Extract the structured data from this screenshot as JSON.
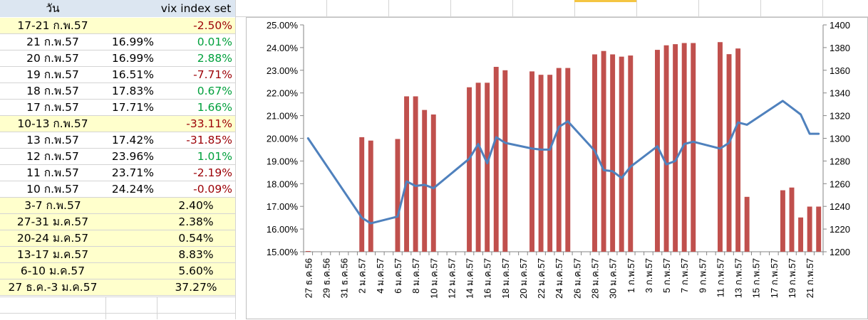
{
  "table": {
    "header": {
      "c1": "วัน",
      "c3": "vix index set"
    },
    "rows": [
      {
        "c1": "17-21 ก.พ.57",
        "c2": "",
        "c3": "-2.50%",
        "style": "yellow",
        "sign": "neg"
      },
      {
        "c1": "21 ก.พ.57",
        "c2": "16.99%",
        "c3": "0.01%",
        "style": "",
        "sign": "pos"
      },
      {
        "c1": "20 ก.พ.57",
        "c2": "16.99%",
        "c3": "2.88%",
        "style": "",
        "sign": "pos"
      },
      {
        "c1": "19 ก.พ.57",
        "c2": "16.51%",
        "c3": "-7.71%",
        "style": "",
        "sign": "neg"
      },
      {
        "c1": "18 ก.พ.57",
        "c2": "17.83%",
        "c3": "0.67%",
        "style": "",
        "sign": "pos"
      },
      {
        "c1": "17 ก.พ.57",
        "c2": "17.71%",
        "c3": "1.66%",
        "style": "",
        "sign": "pos"
      },
      {
        "c1": "10-13 ก.พ.57",
        "c2": "",
        "c3": "-33.11%",
        "style": "yellow",
        "sign": "neg"
      },
      {
        "c1": "13 ก.พ.57",
        "c2": "17.42%",
        "c3": "-31.85%",
        "style": "",
        "sign": "neg"
      },
      {
        "c1": "12 ก.พ.57",
        "c2": "23.96%",
        "c3": "1.01%",
        "style": "",
        "sign": "pos"
      },
      {
        "c1": "11 ก.พ.57",
        "c2": "23.71%",
        "c3": "-2.19%",
        "style": "",
        "sign": "neg"
      },
      {
        "c1": "10 ก.พ.57",
        "c2": "24.24%",
        "c3": "-0.09%",
        "style": "",
        "sign": "neg"
      },
      {
        "c1": "3-7 ก.พ.57",
        "c2": "",
        "c3": "2.40%",
        "style": "yellow",
        "sign": "plain"
      },
      {
        "c1": "27-31 ม.ค.57",
        "c2": "",
        "c3": "2.38%",
        "style": "yellow",
        "sign": "plain"
      },
      {
        "c1": "20-24 ม.ค.57",
        "c2": "",
        "c3": "0.54%",
        "style": "yellow",
        "sign": "plain"
      },
      {
        "c1": "13-17 ม.ค.57",
        "c2": "",
        "c3": "8.83%",
        "style": "yellow",
        "sign": "plain"
      },
      {
        "c1": "6-10 ม.ค.57",
        "c2": "",
        "c3": "5.60%",
        "style": "yellow",
        "sign": "plain"
      },
      {
        "c1": "27 ธ.ค.-3 ม.ค.57",
        "c2": "",
        "c3": "37.27%",
        "style": "yellow",
        "sign": "plain"
      }
    ]
  },
  "chart_data": {
    "type": "bar",
    "bar_color": "#c0504d",
    "line_color": "#4f81bd",
    "y_left": {
      "ticks": [
        "15.00%",
        "16.00%",
        "17.00%",
        "18.00%",
        "19.00%",
        "20.00%",
        "21.00%",
        "22.00%",
        "23.00%",
        "24.00%",
        "25.00%"
      ],
      "min": 15,
      "max": 25
    },
    "y_right": {
      "ticks": [
        "1200",
        "1220",
        "1240",
        "1260",
        "1280",
        "1300",
        "1320",
        "1340",
        "1360",
        "1380",
        "1400"
      ],
      "min": 1200,
      "max": 1400
    },
    "x_tick_labels": [
      "27 ธ.ค.56",
      "29 ธ.ค.56",
      "31 ธ.ค.56",
      "2 ม.ค.57",
      "4 ม.ค.57",
      "6 ม.ค.57",
      "8 ม.ค.57",
      "10 ม.ค.57",
      "12 ม.ค.57",
      "14 ม.ค.57",
      "16 ม.ค.57",
      "18 ม.ค.57",
      "20 ม.ค.57",
      "22 ม.ค.57",
      "24 ม.ค.57",
      "26 ม.ค.57",
      "28 ม.ค.57",
      "30 ม.ค.57",
      "1 ก.พ.57",
      "3 ก.พ.57",
      "5 ก.พ.57",
      "7 ก.พ.57",
      "9 ก.พ.57",
      "11 ก.พ.57",
      "13 ก.พ.57",
      "15 ก.พ.57",
      "17 ก.พ.57",
      "19 ก.พ.57",
      "21 ก.พ.57"
    ],
    "bar_series": [
      {
        "day": 0,
        "value": 15.0
      },
      {
        "day": 6,
        "value": 20.05
      },
      {
        "day": 7,
        "value": 19.9
      },
      {
        "day": 10,
        "value": 19.97
      },
      {
        "day": 11,
        "value": 21.85
      },
      {
        "day": 12,
        "value": 21.85
      },
      {
        "day": 13,
        "value": 21.25
      },
      {
        "day": 14,
        "value": 21.05
      },
      {
        "day": 18,
        "value": 22.25
      },
      {
        "day": 19,
        "value": 22.45
      },
      {
        "day": 20,
        "value": 22.45
      },
      {
        "day": 21,
        "value": 23.15
      },
      {
        "day": 22,
        "value": 23.0
      },
      {
        "day": 25,
        "value": 22.95
      },
      {
        "day": 26,
        "value": 22.8
      },
      {
        "day": 27,
        "value": 22.8
      },
      {
        "day": 28,
        "value": 23.1
      },
      {
        "day": 29,
        "value": 23.1
      },
      {
        "day": 32,
        "value": 23.7
      },
      {
        "day": 33,
        "value": 23.85
      },
      {
        "day": 34,
        "value": 23.7
      },
      {
        "day": 35,
        "value": 23.6
      },
      {
        "day": 36,
        "value": 23.65
      },
      {
        "day": 39,
        "value": 23.9
      },
      {
        "day": 40,
        "value": 24.1
      },
      {
        "day": 41,
        "value": 24.15
      },
      {
        "day": 42,
        "value": 24.2
      },
      {
        "day": 43,
        "value": 24.2
      },
      {
        "day": 46,
        "value": 24.24
      },
      {
        "day": 47,
        "value": 23.71
      },
      {
        "day": 48,
        "value": 23.96
      },
      {
        "day": 49,
        "value": 17.42
      },
      {
        "day": 53,
        "value": 17.71
      },
      {
        "day": 54,
        "value": 17.83
      },
      {
        "day": 55,
        "value": 16.51
      },
      {
        "day": 56,
        "value": 16.99
      },
      {
        "day": 57,
        "value": 16.99
      }
    ],
    "line_series": [
      {
        "day": 0,
        "value": 1300
      },
      {
        "day": 6,
        "value": 1230
      },
      {
        "day": 7,
        "value": 1225
      },
      {
        "day": 10,
        "value": 1231
      },
      {
        "day": 11,
        "value": 1262
      },
      {
        "day": 12,
        "value": 1258
      },
      {
        "day": 13,
        "value": 1259
      },
      {
        "day": 14,
        "value": 1256
      },
      {
        "day": 18,
        "value": 1282
      },
      {
        "day": 19,
        "value": 1295
      },
      {
        "day": 20,
        "value": 1278
      },
      {
        "day": 21,
        "value": 1301
      },
      {
        "day": 22,
        "value": 1296
      },
      {
        "day": 25,
        "value": 1291
      },
      {
        "day": 26,
        "value": 1290
      },
      {
        "day": 27,
        "value": 1290
      },
      {
        "day": 28,
        "value": 1310
      },
      {
        "day": 29,
        "value": 1315
      },
      {
        "day": 32,
        "value": 1289
      },
      {
        "day": 33,
        "value": 1272
      },
      {
        "day": 34,
        "value": 1271
      },
      {
        "day": 35,
        "value": 1265
      },
      {
        "day": 36,
        "value": 1275
      },
      {
        "day": 39,
        "value": 1293
      },
      {
        "day": 40,
        "value": 1277
      },
      {
        "day": 41,
        "value": 1280
      },
      {
        "day": 42,
        "value": 1295
      },
      {
        "day": 43,
        "value": 1297
      },
      {
        "day": 46,
        "value": 1291
      },
      {
        "day": 47,
        "value": 1296
      },
      {
        "day": 48,
        "value": 1314
      },
      {
        "day": 49,
        "value": 1312
      },
      {
        "day": 53,
        "value": 1333
      },
      {
        "day": 54,
        "value": 1327
      },
      {
        "day": 55,
        "value": 1321
      },
      {
        "day": 56,
        "value": 1304
      },
      {
        "day": 57,
        "value": 1304
      }
    ]
  }
}
